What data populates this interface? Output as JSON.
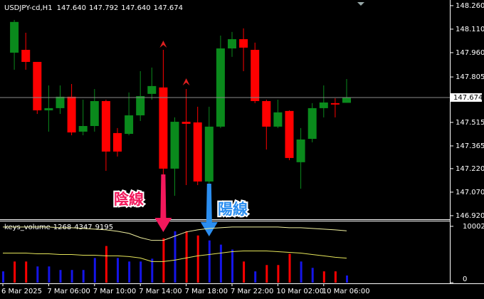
{
  "chart_data": [
    {
      "type": "candlestick",
      "title": "USDJPY-cd,H1",
      "last_quote": {
        "values": [
          147.64,
          147.792,
          147.64,
          147.674
        ],
        "value_labels": [
          "147.640",
          "147.792",
          "147.640",
          "147.674"
        ]
      },
      "categories": [
        "6 Mar 2025",
        null,
        null,
        null,
        "7 Mar 06:00",
        null,
        null,
        null,
        "7 Mar 10:00",
        null,
        null,
        null,
        "7 Mar 14:00",
        null,
        null,
        null,
        "7 Mar 18:00",
        null,
        null,
        null,
        "7 Mar 22:00",
        null,
        null,
        null,
        "10 Mar 02:00",
        null,
        null,
        null,
        "10 Mar 06:00",
        null,
        null
      ],
      "open": [
        null,
        147.96,
        147.978,
        147.901,
        147.592,
        147.606,
        147.679,
        147.456,
        147.492,
        147.651,
        147.447,
        147.442,
        147.56,
        147.697,
        147.738,
        147.22,
        147.519,
        147.515,
        147.138,
        147.488,
        147.987,
        148.046,
        147.978,
        147.651,
        147.488,
        147.588,
        147.261,
        147.41,
        147.606,
        147.638,
        147.64
      ],
      "high": [
        null,
        148.169,
        148.087,
        147.901,
        147.751,
        147.751,
        147.76,
        147.66,
        147.728,
        147.66,
        147.479,
        147.706,
        147.842,
        147.865,
        147.978,
        147.547,
        147.728,
        147.615,
        147.615,
        148.069,
        148.092,
        148.115,
        148.024,
        147.66,
        147.66,
        147.592,
        147.479,
        147.638,
        147.751,
        147.669,
        147.792
      ],
      "low": [
        null,
        147.851,
        147.851,
        147.569,
        147.456,
        147.569,
        147.433,
        147.433,
        147.456,
        147.206,
        147.297,
        147.433,
        147.524,
        147.66,
        147.183,
        147.047,
        147.115,
        147.115,
        147.115,
        147.479,
        147.933,
        147.842,
        147.638,
        147.342,
        147.479,
        147.274,
        147.092,
        147.388,
        147.547,
        147.547,
        147.64
      ],
      "close": [
        null,
        148.156,
        147.901,
        147.592,
        147.606,
        147.679,
        147.451,
        147.492,
        147.651,
        147.329,
        147.329,
        147.56,
        147.683,
        147.747,
        147.22,
        147.519,
        147.506,
        147.138,
        147.488,
        147.987,
        148.046,
        147.992,
        147.651,
        147.488,
        147.579,
        147.288,
        147.406,
        147.606,
        147.642,
        147.629,
        147.674
      ],
      "up_color": "#0a8a1c",
      "down_color": "#ff0000",
      "ylim": [
        146.897,
        148.296
      ],
      "yticks": [
        {
          "value": 148.26,
          "label": "148.260"
        },
        {
          "value": 148.11,
          "label": "148.110"
        },
        {
          "value": 147.96,
          "label": "147.960"
        },
        147.805,
        147.515,
        147.365,
        {
          "value": 147.22,
          "label": "147.220"
        },
        {
          "value": 147.07,
          "label": "147.070"
        },
        {
          "value": 146.92,
          "label": "146.920"
        }
      ],
      "annotations": [
        {
          "text": "陰線",
          "color": "#f2185c"
        },
        {
          "text": "陽線",
          "color": "#2b8ef0"
        }
      ]
    },
    {
      "type": "bar",
      "title": "keys_volume",
      "values": [
        2000,
        3750,
        3750,
        2875,
        2875,
        2250,
        2250,
        2250,
        4375,
        6500,
        4375,
        3750,
        3750,
        4250,
        7875,
        9125,
        9125,
        8375,
        7500,
        6750,
        5875,
        3750,
        2000,
        3125,
        3125,
        5125,
        3750,
        2625,
        2000,
        2000,
        1268
      ],
      "colors": [
        "#1515e8",
        "#ff0000",
        "#ff0000",
        "#1515e8",
        "#1515e8",
        "#1515e8",
        "#1515e8",
        "#1515e8",
        "#1515e8",
        "#ff0000",
        "#1515e8",
        "#1515e8",
        "#1515e8",
        "#1515e8",
        "#ff0000",
        "#1515e8",
        "#ff0000",
        "#ff0000",
        "#1515e8",
        "#1515e8",
        "#1515e8",
        "#ff0000",
        "#1515e8",
        "#ff0000",
        "#ff0000",
        "#ff0000",
        "#1515e8",
        "#1515e8",
        "#ff0000",
        "#ff0000",
        "#1515e8"
      ],
      "series": [
        {
          "color": "#e6e65a",
          "values": [
            5250,
            5250,
            5250,
            5125,
            5125,
            5000,
            5000,
            4875,
            4875,
            4750,
            4750,
            4625,
            4375,
            3750,
            3750,
            4000,
            4375,
            4750,
            5000,
            5250,
            5500,
            5625,
            5625,
            5625,
            5500,
            5375,
            5250,
            5000,
            4750,
            4500,
            4347
          ]
        },
        {
          "color": "#f0f0a0",
          "values": [
            9875,
            9875,
            9875,
            9875,
            9875,
            9750,
            9750,
            9625,
            9500,
            9375,
            9125,
            8750,
            8000,
            7500,
            7500,
            8250,
            9000,
            9375,
            9625,
            9750,
            9875,
            9875,
            9875,
            9875,
            9875,
            9750,
            9750,
            9625,
            9500,
            9375,
            9195
          ]
        }
      ],
      "ylim": [
        0,
        11000
      ],
      "yticks": [
        0,
        10002
      ]
    }
  ]
}
